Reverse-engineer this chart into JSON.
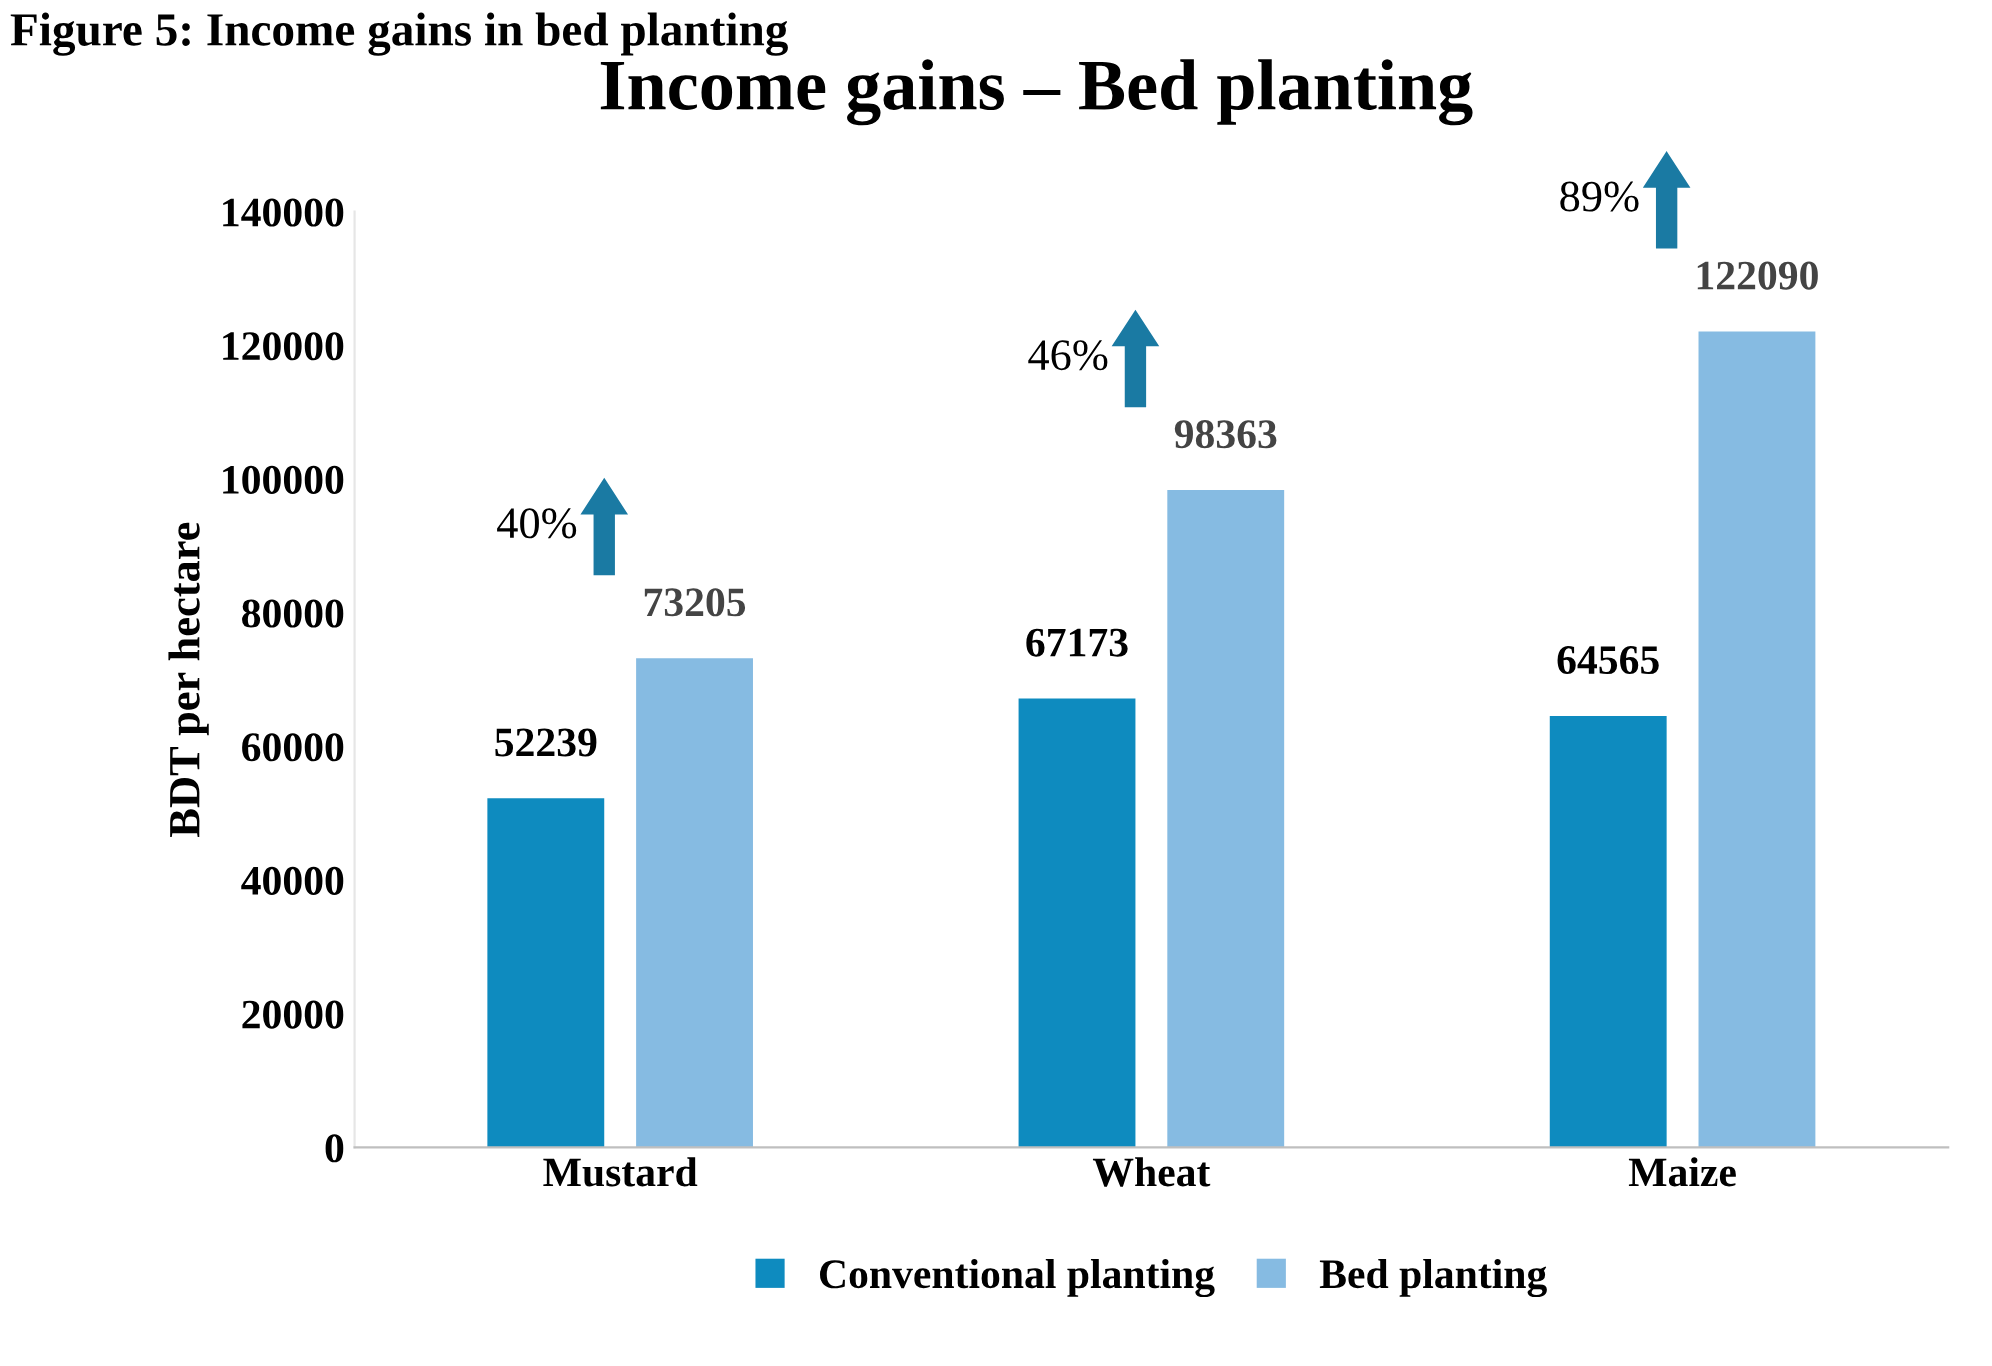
{
  "chart_data": {
    "type": "bar",
    "title": "Income gains – Bed planting",
    "ylabel": "BDT per hectare",
    "categories": [
      "Mustard",
      "Wheat",
      "Maize"
    ],
    "series": [
      {
        "name": "Conventional planting",
        "color": "#0e8bbf",
        "values": [
          52239,
          67173,
          64565
        ]
      },
      {
        "name": "Bed planting",
        "color": "#86bbe2",
        "values": [
          73205,
          98363,
          122090
        ]
      }
    ],
    "ylim": [
      0,
      140000
    ],
    "yticks": [
      0,
      20000,
      40000,
      60000,
      80000,
      100000,
      120000,
      140000
    ],
    "data_labels": true,
    "grid": false,
    "legend": "bottom",
    "annotations": [
      "Figure 5: Income gains in bed planting",
      "40%",
      "46%",
      "89%"
    ]
  }
}
